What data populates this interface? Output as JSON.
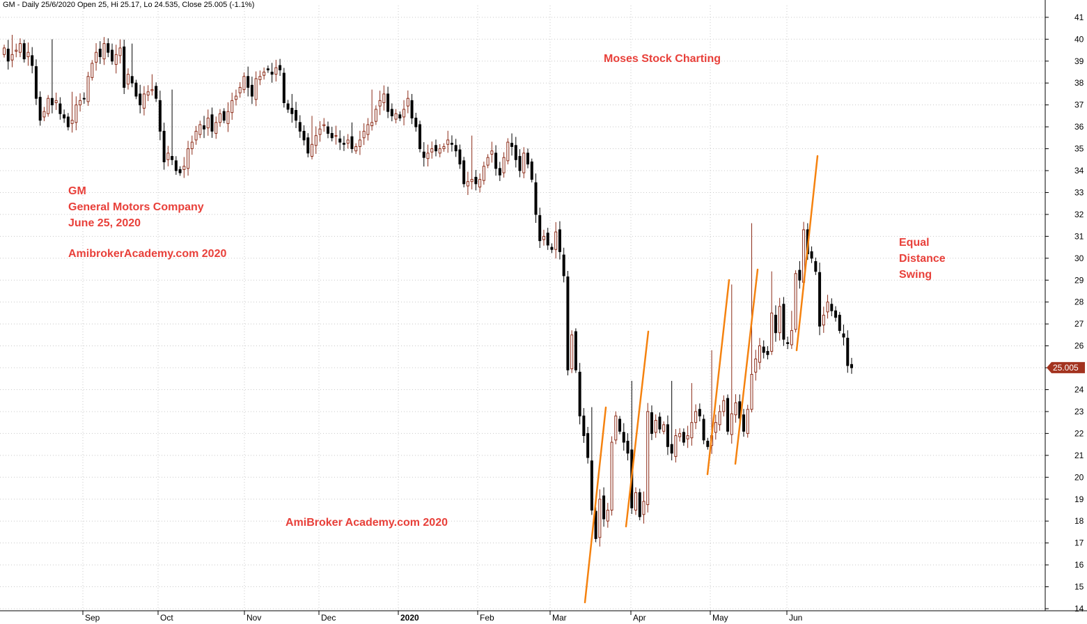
{
  "header": "GM - Daily 25/6/2020 Open 25, Hi 25.17, Lo 24.535, Close 25.005 (-1.1%)",
  "annotations": {
    "title_note": "Moses Stock Charting",
    "company_lines": [
      "GM",
      "General Motors Company",
      "June 25, 2020"
    ],
    "site_note_1": "AmibrokerAcademy.com  2020",
    "site_note_2": "AmiBroker Academy.com  2020",
    "swing_lines": [
      "Equal",
      "Distance",
      "Swing"
    ]
  },
  "colors": {
    "up_candle": "#8b2a16",
    "down_candle": "#000000",
    "swing_line": "#f5820f",
    "annotation_text": "#e8403a",
    "price_tag_bg": "#a3331f",
    "grid": "#c8c8c8"
  },
  "chart_data": {
    "type": "candlestick",
    "title": "GM - Daily 25/6/2020 Open 25, Hi 25.17, Lo 24.535, Close 25.005 (-1.1%)",
    "ylim": [
      14,
      41
    ],
    "yticks": [
      14,
      15,
      16,
      17,
      18,
      19,
      20,
      21,
      22,
      23,
      24,
      25,
      26,
      27,
      28,
      29,
      30,
      31,
      32,
      33,
      34,
      35,
      36,
      37,
      38,
      39,
      40,
      41
    ],
    "xticks": [
      "Sep",
      "Oct",
      "Nov",
      "Dec",
      "2020",
      "Feb",
      "Mar",
      "Apr",
      "May",
      "Jun"
    ],
    "last_price_label": "25.005",
    "grid": "dotted horizontal and vertical",
    "close": [
      39.6,
      39.0,
      39.3,
      39.5,
      39.8,
      39.1,
      39.4,
      38.8,
      37.3,
      36.3,
      36.7,
      37.3,
      37.0,
      37.2,
      36.6,
      36.4,
      36.0,
      36.3,
      37.0,
      37.2,
      37.3,
      38.3,
      38.9,
      39.4,
      39.2,
      39.8,
      39.4,
      39.0,
      39.3,
      39.6,
      37.8,
      38.4,
      38.0,
      37.4,
      37.0,
      37.5,
      37.6,
      37.7,
      37.3,
      35.8,
      34.4,
      34.8,
      34.5,
      34.0,
      33.9,
      34.2,
      35.0,
      35.3,
      35.8,
      36.1,
      35.9,
      36.4,
      35.8,
      36.2,
      36.6,
      36.3,
      36.7,
      37.2,
      37.4,
      37.8,
      38.3,
      37.8,
      37.4,
      38.2,
      38.3,
      38.5,
      38.6,
      38.4,
      38.7,
      38.6,
      37.1,
      36.8,
      36.6,
      36.3,
      35.8,
      35.4,
      34.8,
      35.2,
      35.6,
      35.9,
      36.1,
      35.7,
      35.5,
      35.6,
      35.3,
      35.2,
      35.4,
      35.0,
      35.1,
      35.4,
      35.8,
      36.1,
      36.2,
      36.8,
      37.2,
      37.5,
      36.7,
      36.5,
      36.6,
      36.4,
      36.8,
      37.3,
      36.4,
      36.0,
      35.0,
      34.6,
      34.8,
      35.0,
      34.9,
      35.0,
      35.1,
      35.4,
      35.2,
      34.9,
      34.3,
      33.4,
      33.5,
      33.6,
      33.4,
      33.6,
      34.2,
      34.6,
      34.9,
      34.1,
      33.8,
      34.6,
      35.3,
      35.1,
      34.5,
      34.0,
      34.8,
      34.3,
      33.6,
      32.0,
      30.8,
      31.0,
      30.6,
      30.4,
      31.2,
      30.3,
      29.2,
      24.9,
      26.5,
      24.9,
      22.8,
      21.9,
      20.9,
      18.5,
      17.2,
      19.0,
      18.1,
      18.5,
      21.6,
      22.8,
      22.1,
      21.6,
      21.1,
      18.6,
      19.3,
      18.2,
      18.9,
      23.0,
      22.0,
      22.6,
      22.2,
      22.4,
      21.4,
      21.1,
      21.9,
      22.0,
      21.6,
      21.9,
      22.5,
      23.0,
      22.8,
      21.7,
      21.4,
      21.9,
      22.5,
      23.0,
      23.5,
      22.1,
      22.9,
      23.4,
      22.7,
      22.1,
      23.1,
      24.7,
      25.4,
      26.0,
      25.7,
      25.6,
      27.5,
      26.6,
      27.8,
      26.3,
      26.1,
      26.7,
      29.3,
      29.0,
      31.3,
      30.2,
      30.0,
      29.4,
      26.9,
      27.4,
      28.0,
      27.6,
      27.3,
      26.7,
      26.4,
      25.1,
      25.0
    ],
    "weekly_highs": [
      40.2,
      39.6,
      40.0,
      37.6,
      37.3,
      39.8,
      39.8,
      38.4,
      37.7,
      35.6,
      35.8,
      37.1,
      38.2,
      38.6,
      37.5,
      36.5,
      36.0,
      36.2,
      37.7,
      36.9,
      35.0,
      35.2,
      34.2,
      35.6,
      35.3,
      33.1,
      29.9,
      27.1,
      24.3,
      23.2,
      21.4,
      24.4,
      23.2,
      24.4,
      24.3,
      25.8,
      28.8,
      31.6,
      29.4,
      27.6
    ]
  }
}
